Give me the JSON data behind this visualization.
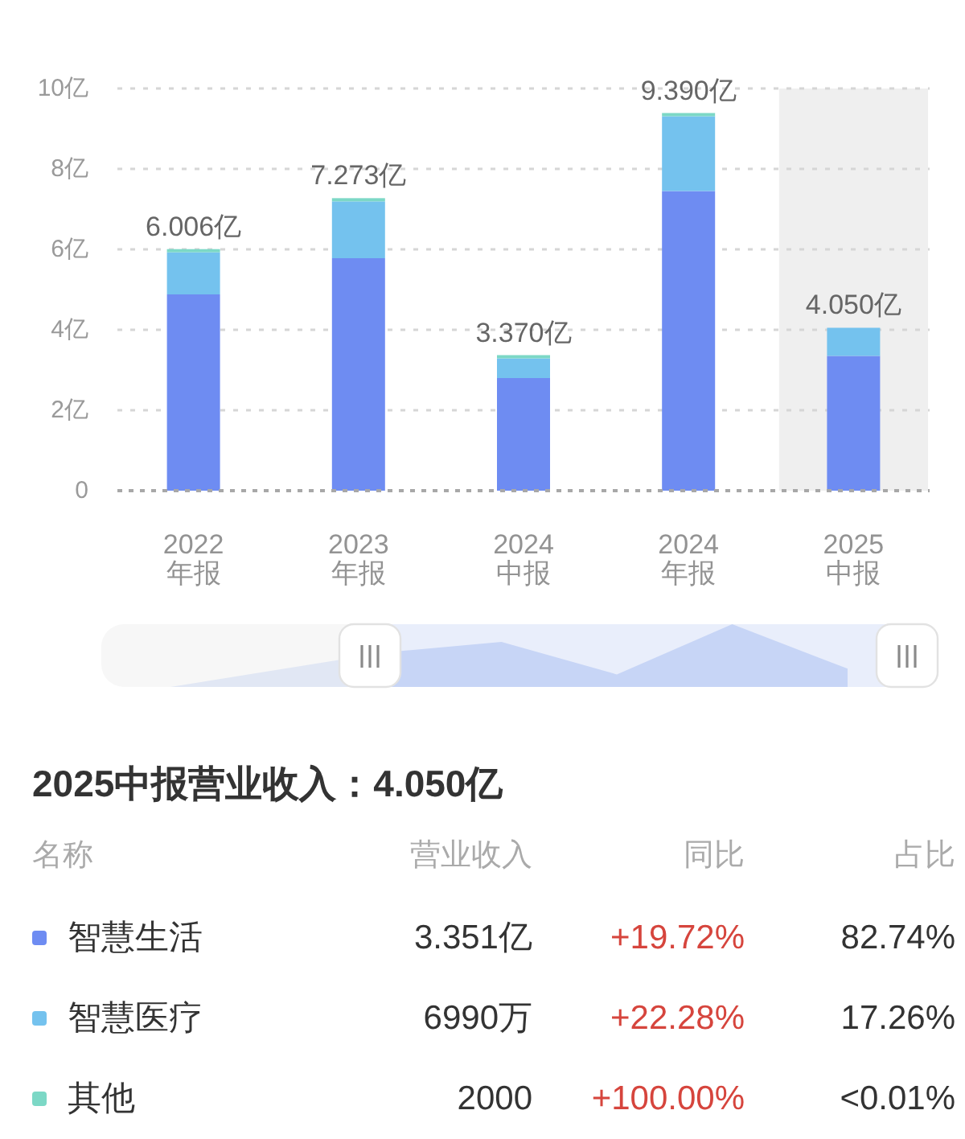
{
  "chart_data": {
    "type": "bar",
    "stacked": true,
    "categories": [
      "2022\n年报",
      "2023\n年报",
      "2024\n中报",
      "2024\n年报",
      "2025\n中报"
    ],
    "series": [
      {
        "name": "智慧生活",
        "color": "#6e8cf2",
        "values": [
          4.88,
          5.78,
          2.8,
          7.45,
          3.351
        ]
      },
      {
        "name": "智慧医疗",
        "color": "#74c2ee",
        "values": [
          1.046,
          1.413,
          0.49,
          1.86,
          0.699
        ]
      },
      {
        "name": "其他",
        "color": "#7cd8c6",
        "values": [
          0.08,
          0.08,
          0.08,
          0.08,
          2e-05
        ]
      }
    ],
    "totals": [
      "6.006亿",
      "7.273亿",
      "3.370亿",
      "9.390亿",
      "4.050亿"
    ],
    "ylim": [
      0,
      10
    ],
    "yticks": [
      0,
      {
        "value": 2,
        "label": "2亿"
      },
      {
        "value": 4,
        "label": "4亿"
      },
      {
        "value": 6,
        "label": "6亿"
      },
      {
        "value": 8,
        "label": "8亿"
      },
      {
        "value": 10,
        "label": "10亿"
      }
    ],
    "grid": "y",
    "legend": "bottom",
    "bands": [
      {
        "axis": "x",
        "from": "2025\n中报",
        "to": "2025\n中报",
        "color": "#efefef"
      }
    ],
    "annotations": [
      "2025中报营业收入：4.050亿",
      "名称",
      "营业收入",
      "同比",
      "占比",
      "3.351亿",
      "+19.72%",
      "82.74%",
      "6990万",
      "+22.28%",
      "17.26%",
      "2000",
      "+100.00%",
      "<0.01%"
    ]
  }
}
